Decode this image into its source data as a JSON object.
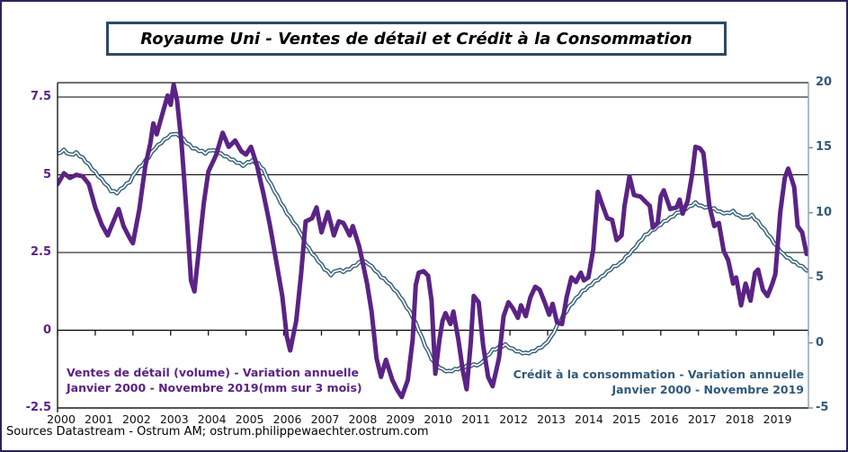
{
  "page": {
    "title": "Royaume Uni - Ventes de détail et Crédit à la Consommation",
    "source": "Sources Datastream - Ostrum AM;  ostrum.philippewaechter.ostrum.com"
  },
  "chart_data": {
    "type": "line",
    "title": "Royaume Uni - Ventes de détail et Crédit à la Consommation",
    "points_format": "[decimal_year, percent]",
    "x_axis": {
      "labels": [
        "2000",
        "2001",
        "2002",
        "2003",
        "2004",
        "2005",
        "2006",
        "2007",
        "2008",
        "2009",
        "2010",
        "2011",
        "2012",
        "2013",
        "2014",
        "2015",
        "2016",
        "2017",
        "2018",
        "2019"
      ],
      "range_years": [
        2000,
        2019.917
      ],
      "grid": false
    },
    "left_axis": {
      "ticks": [
        7.5,
        5,
        2.5,
        0,
        -2.5
      ],
      "range": [
        -2.5,
        7.96
      ],
      "color": "#5a2385",
      "gridlines": [
        7.5,
        5,
        2.5,
        0
      ]
    },
    "right_axis": {
      "ticks": [
        20,
        15,
        10,
        5,
        0,
        -5
      ],
      "range": [
        -5,
        20
      ],
      "color": "#31597a"
    },
    "series": [
      {
        "name": "credit-consommation",
        "legend": [
          "Crédit à la consommation  - Variation annuelle",
          "Janvier 2000 - Novembre 2019"
        ],
        "axis": "right",
        "color": "#35607a",
        "style": "double-line",
        "points": [
          [
            2000.0,
            14.55
          ],
          [
            2000.17,
            14.8
          ],
          [
            2000.33,
            14.45
          ],
          [
            2000.5,
            14.6
          ],
          [
            2000.67,
            14.2
          ],
          [
            2000.83,
            13.7
          ],
          [
            2001.0,
            13.1
          ],
          [
            2001.25,
            12.3
          ],
          [
            2001.42,
            11.7
          ],
          [
            2001.58,
            11.55
          ],
          [
            2001.75,
            12.0
          ],
          [
            2001.92,
            12.4
          ],
          [
            2002.08,
            13.2
          ],
          [
            2002.25,
            13.7
          ],
          [
            2002.42,
            14.3
          ],
          [
            2002.58,
            14.95
          ],
          [
            2002.75,
            15.4
          ],
          [
            2002.92,
            15.8
          ],
          [
            2003.08,
            16.1
          ],
          [
            2003.25,
            15.9
          ],
          [
            2003.42,
            15.4
          ],
          [
            2003.58,
            15.0
          ],
          [
            2003.75,
            14.8
          ],
          [
            2003.92,
            14.6
          ],
          [
            2004.08,
            14.85
          ],
          [
            2004.25,
            14.65
          ],
          [
            2004.42,
            14.4
          ],
          [
            2004.58,
            14.15
          ],
          [
            2004.75,
            13.9
          ],
          [
            2004.92,
            13.65
          ],
          [
            2005.04,
            13.85
          ],
          [
            2005.17,
            14.0
          ],
          [
            2005.33,
            13.75
          ],
          [
            2005.46,
            13.3
          ],
          [
            2005.58,
            12.6
          ],
          [
            2005.75,
            11.7
          ],
          [
            2005.92,
            10.8
          ],
          [
            2006.08,
            10.0
          ],
          [
            2006.25,
            9.3
          ],
          [
            2006.42,
            8.6
          ],
          [
            2006.58,
            7.6
          ],
          [
            2006.75,
            6.9
          ],
          [
            2006.92,
            6.3
          ],
          [
            2007.08,
            5.7
          ],
          [
            2007.25,
            5.25
          ],
          [
            2007.42,
            5.6
          ],
          [
            2007.58,
            5.5
          ],
          [
            2007.75,
            5.7
          ],
          [
            2007.92,
            6.0
          ],
          [
            2008.08,
            6.3
          ],
          [
            2008.25,
            6.1
          ],
          [
            2008.42,
            5.6
          ],
          [
            2008.58,
            5.1
          ],
          [
            2008.75,
            4.7
          ],
          [
            2008.92,
            4.15
          ],
          [
            2009.08,
            3.6
          ],
          [
            2009.25,
            2.8
          ],
          [
            2009.42,
            2.0
          ],
          [
            2009.58,
            1.0
          ],
          [
            2009.75,
            -0.2
          ],
          [
            2009.92,
            -1.2
          ],
          [
            2010.04,
            -1.65
          ],
          [
            2010.21,
            -2.05
          ],
          [
            2010.38,
            -2.2
          ],
          [
            2010.54,
            -2.05
          ],
          [
            2010.71,
            -1.9
          ],
          [
            2010.88,
            -1.75
          ],
          [
            2011.04,
            -1.7
          ],
          [
            2011.21,
            -1.65
          ],
          [
            2011.38,
            -1.05
          ],
          [
            2011.54,
            -0.55
          ],
          [
            2011.71,
            -0.35
          ],
          [
            2011.88,
            -0.15
          ],
          [
            2012.08,
            -0.5
          ],
          [
            2012.25,
            -0.7
          ],
          [
            2012.42,
            -0.8
          ],
          [
            2012.58,
            -0.7
          ],
          [
            2012.75,
            -0.45
          ],
          [
            2012.92,
            -0.15
          ],
          [
            2013.08,
            0.4
          ],
          [
            2013.25,
            1.3
          ],
          [
            2013.42,
            2.1
          ],
          [
            2013.58,
            2.8
          ],
          [
            2013.75,
            3.4
          ],
          [
            2013.92,
            3.95
          ],
          [
            2014.08,
            4.3
          ],
          [
            2014.25,
            4.7
          ],
          [
            2014.42,
            5.05
          ],
          [
            2014.58,
            5.45
          ],
          [
            2014.75,
            5.85
          ],
          [
            2014.92,
            6.1
          ],
          [
            2015.08,
            6.6
          ],
          [
            2015.25,
            7.1
          ],
          [
            2015.42,
            7.7
          ],
          [
            2015.58,
            8.25
          ],
          [
            2015.75,
            8.6
          ],
          [
            2015.92,
            8.95
          ],
          [
            2016.08,
            9.3
          ],
          [
            2016.25,
            9.6
          ],
          [
            2016.42,
            9.95
          ],
          [
            2016.58,
            10.2
          ],
          [
            2016.75,
            10.45
          ],
          [
            2016.92,
            10.75
          ],
          [
            2017.08,
            10.5
          ],
          [
            2017.25,
            10.4
          ],
          [
            2017.42,
            10.3
          ],
          [
            2017.58,
            10.05
          ],
          [
            2017.75,
            9.95
          ],
          [
            2017.92,
            10.1
          ],
          [
            2018.08,
            9.75
          ],
          [
            2018.25,
            9.6
          ],
          [
            2018.42,
            9.8
          ],
          [
            2018.58,
            9.3
          ],
          [
            2018.75,
            8.7
          ],
          [
            2018.92,
            8.05
          ],
          [
            2019.08,
            7.4
          ],
          [
            2019.25,
            6.8
          ],
          [
            2019.42,
            6.45
          ],
          [
            2019.58,
            6.15
          ],
          [
            2019.75,
            5.85
          ],
          [
            2019.87,
            5.55
          ]
        ]
      },
      {
        "name": "ventes-detail",
        "legend": [
          "Ventes de détail (volume) - Variation  annuelle",
          "Janvier 2000 - Novembre 2019(mm sur 3 mois)"
        ],
        "axis": "left",
        "color": "#5a2385",
        "style": "solid",
        "points": [
          [
            2000.0,
            4.7
          ],
          [
            2000.17,
            5.05
          ],
          [
            2000.33,
            4.9
          ],
          [
            2000.5,
            5.0
          ],
          [
            2000.67,
            4.95
          ],
          [
            2000.83,
            4.7
          ],
          [
            2001.0,
            3.95
          ],
          [
            2001.17,
            3.4
          ],
          [
            2001.33,
            3.05
          ],
          [
            2001.5,
            3.55
          ],
          [
            2001.62,
            3.9
          ],
          [
            2001.75,
            3.35
          ],
          [
            2001.92,
            2.95
          ],
          [
            2002.0,
            2.8
          ],
          [
            2002.17,
            3.9
          ],
          [
            2002.33,
            5.3
          ],
          [
            2002.46,
            6.0
          ],
          [
            2002.54,
            6.65
          ],
          [
            2002.63,
            6.3
          ],
          [
            2002.79,
            7.0
          ],
          [
            2002.92,
            7.55
          ],
          [
            2003.0,
            7.25
          ],
          [
            2003.08,
            7.9
          ],
          [
            2003.17,
            7.4
          ],
          [
            2003.29,
            6.0
          ],
          [
            2003.42,
            3.8
          ],
          [
            2003.54,
            1.6
          ],
          [
            2003.63,
            1.25
          ],
          [
            2003.75,
            2.6
          ],
          [
            2003.88,
            4.1
          ],
          [
            2004.0,
            5.1
          ],
          [
            2004.21,
            5.65
          ],
          [
            2004.38,
            6.35
          ],
          [
            2004.54,
            5.9
          ],
          [
            2004.71,
            6.1
          ],
          [
            2004.88,
            5.75
          ],
          [
            2005.0,
            5.65
          ],
          [
            2005.13,
            5.9
          ],
          [
            2005.29,
            5.3
          ],
          [
            2005.46,
            4.4
          ],
          [
            2005.63,
            3.4
          ],
          [
            2005.79,
            2.3
          ],
          [
            2005.96,
            1.1
          ],
          [
            2006.08,
            -0.2
          ],
          [
            2006.17,
            -0.65
          ],
          [
            2006.33,
            0.3
          ],
          [
            2006.46,
            1.8
          ],
          [
            2006.58,
            3.5
          ],
          [
            2006.75,
            3.6
          ],
          [
            2006.87,
            3.95
          ],
          [
            2007.0,
            3.15
          ],
          [
            2007.17,
            3.8
          ],
          [
            2007.33,
            3.05
          ],
          [
            2007.46,
            3.5
          ],
          [
            2007.58,
            3.45
          ],
          [
            2007.75,
            3.05
          ],
          [
            2007.83,
            3.35
          ],
          [
            2008.0,
            2.7
          ],
          [
            2008.08,
            2.25
          ],
          [
            2008.21,
            1.5
          ],
          [
            2008.33,
            0.6
          ],
          [
            2008.46,
            -0.9
          ],
          [
            2008.58,
            -1.5
          ],
          [
            2008.71,
            -0.95
          ],
          [
            2008.88,
            -1.6
          ],
          [
            2009.0,
            -1.9
          ],
          [
            2009.13,
            -2.15
          ],
          [
            2009.29,
            -1.6
          ],
          [
            2009.42,
            -0.3
          ],
          [
            2009.5,
            1.45
          ],
          [
            2009.58,
            1.85
          ],
          [
            2009.71,
            1.9
          ],
          [
            2009.83,
            1.75
          ],
          [
            2009.92,
            0.95
          ],
          [
            2010.02,
            -1.4
          ],
          [
            2010.13,
            -0.3
          ],
          [
            2010.21,
            0.3
          ],
          [
            2010.29,
            0.55
          ],
          [
            2010.42,
            0.2
          ],
          [
            2010.5,
            0.6
          ],
          [
            2010.63,
            -0.3
          ],
          [
            2010.75,
            -1.3
          ],
          [
            2010.85,
            -1.9
          ],
          [
            2010.96,
            -0.4
          ],
          [
            2011.04,
            1.1
          ],
          [
            2011.17,
            0.9
          ],
          [
            2011.29,
            -0.5
          ],
          [
            2011.42,
            -1.5
          ],
          [
            2011.54,
            -1.8
          ],
          [
            2011.71,
            -0.9
          ],
          [
            2011.83,
            0.45
          ],
          [
            2011.96,
            0.9
          ],
          [
            2012.08,
            0.7
          ],
          [
            2012.21,
            0.4
          ],
          [
            2012.29,
            0.8
          ],
          [
            2012.42,
            0.45
          ],
          [
            2012.54,
            1.05
          ],
          [
            2012.67,
            1.4
          ],
          [
            2012.79,
            1.3
          ],
          [
            2012.92,
            0.9
          ],
          [
            2013.04,
            0.5
          ],
          [
            2013.13,
            0.85
          ],
          [
            2013.25,
            0.25
          ],
          [
            2013.38,
            0.2
          ],
          [
            2013.5,
            1.05
          ],
          [
            2013.63,
            1.7
          ],
          [
            2013.75,
            1.55
          ],
          [
            2013.88,
            1.85
          ],
          [
            2013.96,
            1.6
          ],
          [
            2014.08,
            1.7
          ],
          [
            2014.21,
            2.6
          ],
          [
            2014.33,
            4.45
          ],
          [
            2014.46,
            4.0
          ],
          [
            2014.58,
            3.6
          ],
          [
            2014.71,
            3.55
          ],
          [
            2014.83,
            2.9
          ],
          [
            2014.96,
            3.05
          ],
          [
            2015.04,
            4.0
          ],
          [
            2015.17,
            4.95
          ],
          [
            2015.29,
            4.35
          ],
          [
            2015.46,
            4.3
          ],
          [
            2015.58,
            4.15
          ],
          [
            2015.71,
            4.0
          ],
          [
            2015.79,
            3.3
          ],
          [
            2015.92,
            3.45
          ],
          [
            2016.0,
            4.3
          ],
          [
            2016.08,
            4.5
          ],
          [
            2016.25,
            3.9
          ],
          [
            2016.42,
            3.95
          ],
          [
            2016.5,
            4.2
          ],
          [
            2016.58,
            3.75
          ],
          [
            2016.71,
            4.15
          ],
          [
            2016.83,
            5.0
          ],
          [
            2016.92,
            5.9
          ],
          [
            2017.04,
            5.85
          ],
          [
            2017.13,
            5.7
          ],
          [
            2017.29,
            4.0
          ],
          [
            2017.42,
            3.35
          ],
          [
            2017.54,
            3.45
          ],
          [
            2017.67,
            2.55
          ],
          [
            2017.79,
            2.25
          ],
          [
            2017.92,
            1.5
          ],
          [
            2018.0,
            1.7
          ],
          [
            2018.13,
            0.8
          ],
          [
            2018.25,
            1.5
          ],
          [
            2018.38,
            0.95
          ],
          [
            2018.5,
            1.85
          ],
          [
            2018.58,
            1.95
          ],
          [
            2018.71,
            1.3
          ],
          [
            2018.83,
            1.1
          ],
          [
            2018.96,
            1.5
          ],
          [
            2019.04,
            1.8
          ],
          [
            2019.17,
            3.8
          ],
          [
            2019.29,
            4.9
          ],
          [
            2019.38,
            5.2
          ],
          [
            2019.54,
            4.6
          ],
          [
            2019.63,
            3.35
          ],
          [
            2019.75,
            3.15
          ],
          [
            2019.87,
            2.45
          ]
        ]
      }
    ],
    "legend_position": "inside-bottom",
    "source": "Sources Datastream - Ostrum AM;  ostrum.philippewaechter.ostrum.com"
  },
  "style": {
    "accent_purple": "#5a2385",
    "accent_slate": "#31597a",
    "frame_color": "#28255c",
    "titlebox_border": "#2d4a63",
    "grid_color": "#000000",
    "plot_right_border": "#8da0ad"
  }
}
